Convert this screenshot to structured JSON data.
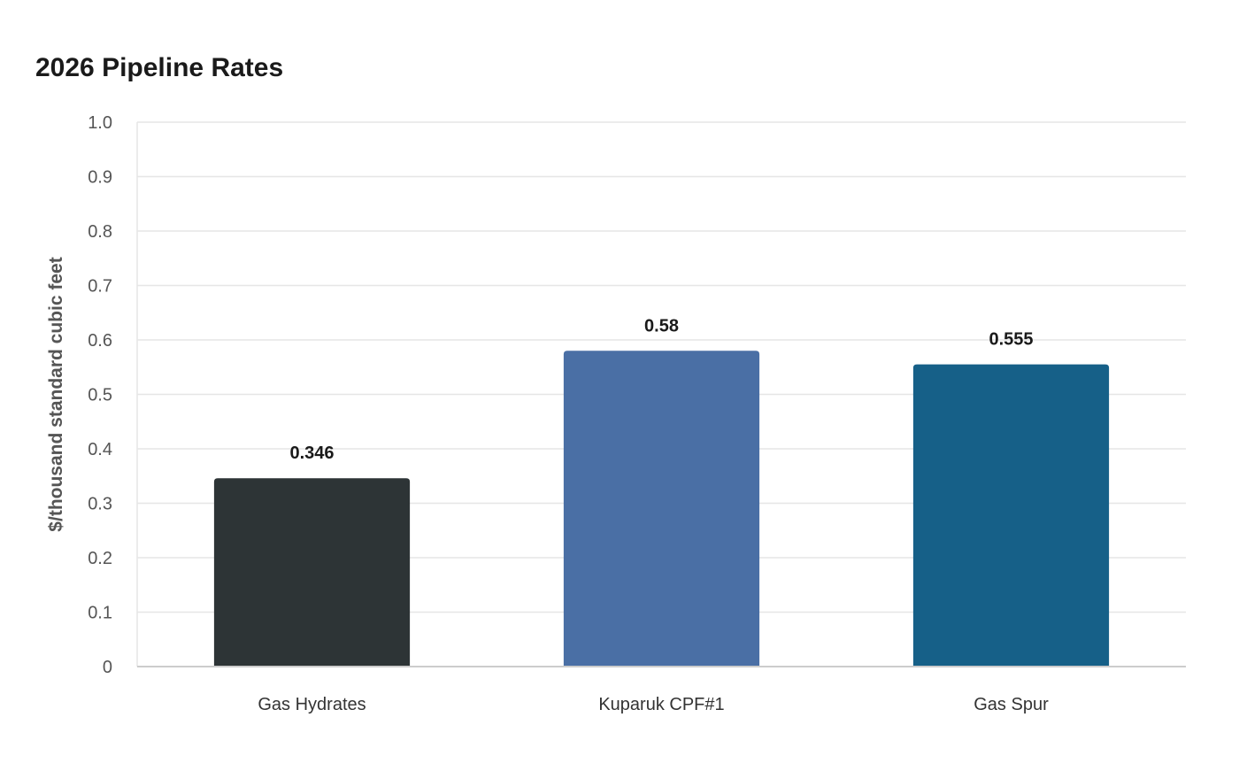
{
  "chart_data": {
    "type": "bar",
    "title": "2026 Pipeline Rates",
    "xlabel": "",
    "ylabel": "$/thousand standard cubic feet",
    "categories": [
      "Gas Hydrates",
      "Kuparuk CPF#1",
      "Gas Spur"
    ],
    "values": [
      0.346,
      0.58,
      0.555
    ],
    "value_labels": [
      "0.346",
      "0.58",
      "0.555"
    ],
    "colors": [
      "#2d3436",
      "#4a6fa5",
      "#166088"
    ],
    "ylim": [
      0,
      1.0
    ],
    "yticks": [
      0,
      0.1,
      0.2,
      0.3,
      0.4,
      0.5,
      0.6,
      0.7,
      0.8,
      0.9,
      1.0
    ],
    "ytick_labels": [
      "0",
      "0.1",
      "0.2",
      "0.3",
      "0.4",
      "0.5",
      "0.6",
      "0.7",
      "0.8",
      "0.9",
      "1.0"
    ],
    "grid": true,
    "legend": "none"
  }
}
